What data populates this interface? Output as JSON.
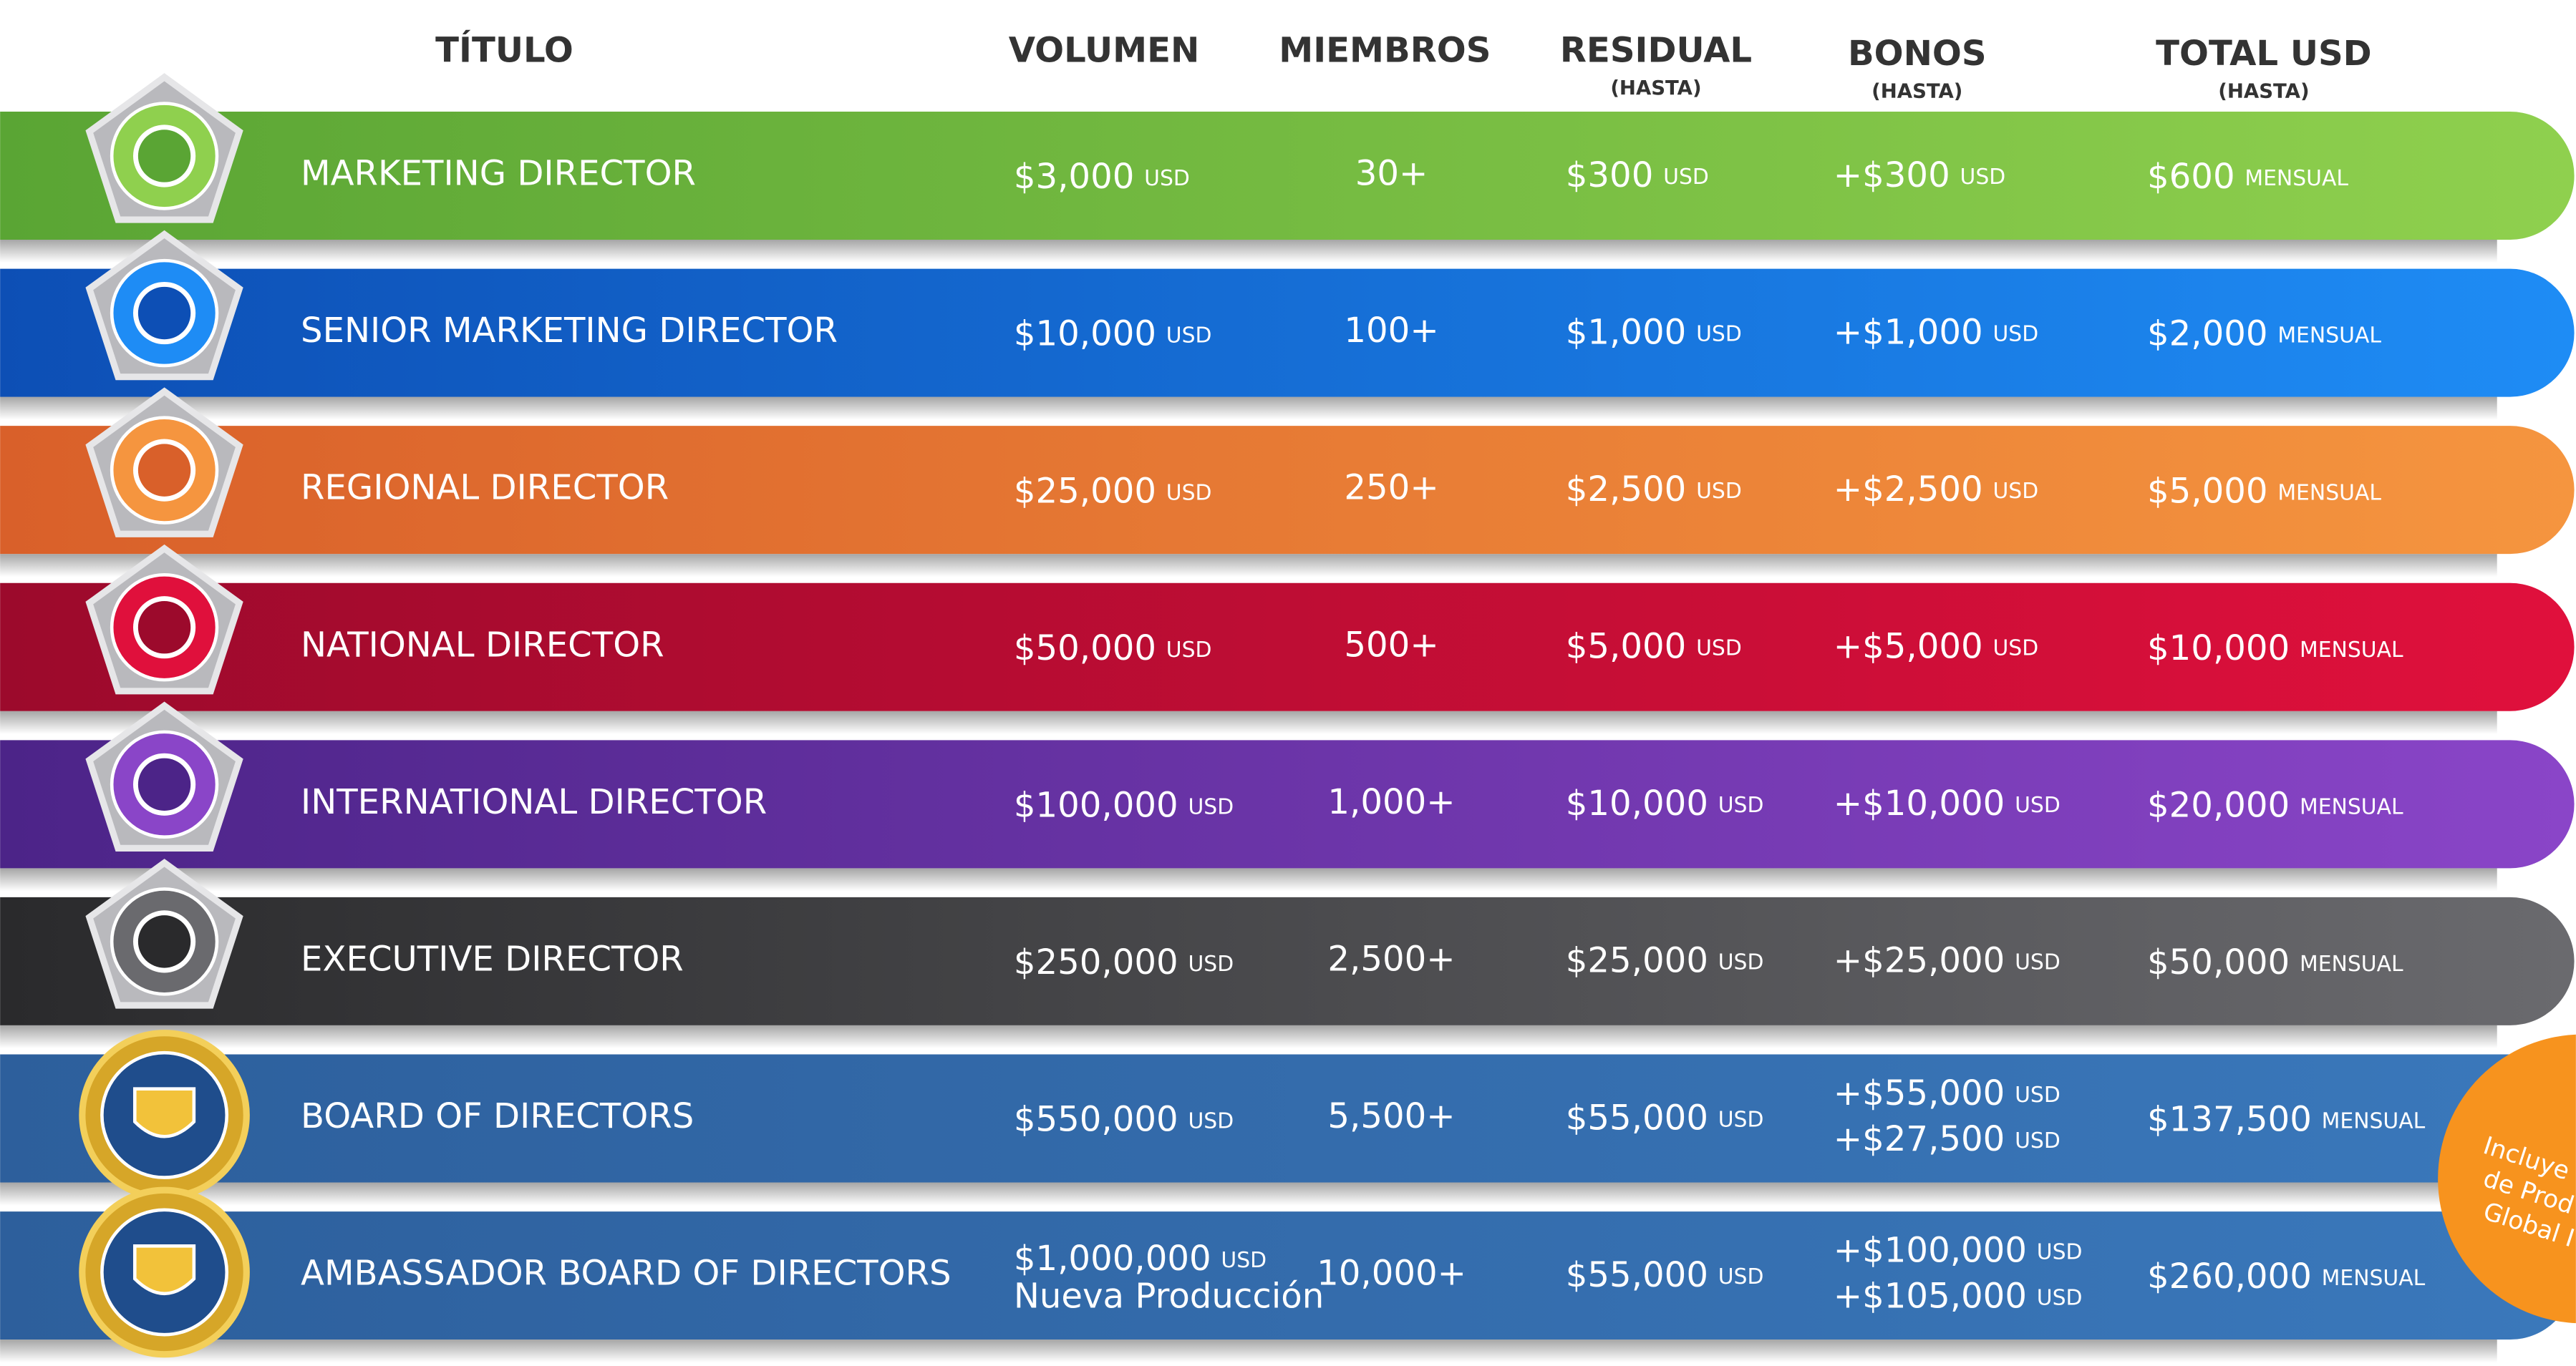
{
  "header": {
    "columns": [
      "TÍTULO",
      "VOLUMEN",
      "MIEMBROS",
      "RESIDUAL",
      "BONOS",
      "TOTAL USD"
    ],
    "sub": {
      "residual": "(HASTA)",
      "bonus": "(HASTA)",
      "total": "(HASTA)"
    }
  },
  "rows": [
    {
      "title": "MARKETING DIRECTOR",
      "volume": {
        "amount": "$3,000",
        "unit": "USD"
      },
      "members": "30+",
      "residual": {
        "amount": "$300",
        "unit": "USD"
      },
      "bonus": [
        {
          "amount": "+$300",
          "unit": "USD"
        }
      ],
      "total": {
        "amount": "$600",
        "unit": "MENSUAL"
      }
    },
    {
      "title": "SENIOR MARKETING DIRECTOR",
      "volume": {
        "amount": "$10,000",
        "unit": "USD"
      },
      "members": "100+",
      "residual": {
        "amount": "$1,000",
        "unit": "USD"
      },
      "bonus": [
        {
          "amount": "+$1,000",
          "unit": "USD"
        }
      ],
      "total": {
        "amount": "$2,000",
        "unit": "MENSUAL"
      }
    },
    {
      "title": "REGIONAL DIRECTOR",
      "volume": {
        "amount": "$25,000",
        "unit": "USD"
      },
      "members": "250+",
      "residual": {
        "amount": "$2,500",
        "unit": "USD"
      },
      "bonus": [
        {
          "amount": "+$2,500",
          "unit": "USD"
        }
      ],
      "total": {
        "amount": "$5,000",
        "unit": "MENSUAL"
      }
    },
    {
      "title": "NATIONAL DIRECTOR",
      "volume": {
        "amount": "$50,000",
        "unit": "USD"
      },
      "members": "500+",
      "residual": {
        "amount": "$5,000",
        "unit": "USD"
      },
      "bonus": [
        {
          "amount": "+$5,000",
          "unit": "USD"
        }
      ],
      "total": {
        "amount": "$10,000",
        "unit": "MENSUAL"
      }
    },
    {
      "title": "INTERNATIONAL DIRECTOR",
      "volume": {
        "amount": "$100,000",
        "unit": "USD"
      },
      "members": "1,000+",
      "residual": {
        "amount": "$10,000",
        "unit": "USD"
      },
      "bonus": [
        {
          "amount": "+$10,000",
          "unit": "USD"
        }
      ],
      "total": {
        "amount": "$20,000",
        "unit": "MENSUAL"
      }
    },
    {
      "title": "EXECUTIVE DIRECTOR",
      "volume": {
        "amount": "$250,000",
        "unit": "USD"
      },
      "members": "2,500+",
      "residual": {
        "amount": "$25,000",
        "unit": "USD"
      },
      "bonus": [
        {
          "amount": "+$25,000",
          "unit": "USD"
        }
      ],
      "total": {
        "amount": "$50,000",
        "unit": "MENSUAL"
      }
    },
    {
      "title": "BOARD OF DIRECTORS",
      "volume": {
        "amount": "$550,000",
        "unit": "USD"
      },
      "members": "5,500+",
      "residual": {
        "amount": "$55,000",
        "unit": "USD"
      },
      "bonus": [
        {
          "amount": "+$55,000",
          "unit": "USD"
        },
        {
          "amount": "+$27,500",
          "unit": "USD"
        }
      ],
      "total": {
        "amount": "$137,500",
        "unit": "MENSUAL"
      }
    },
    {
      "title": "AMBASSADOR BOARD OF DIRECTORS",
      "volume": {
        "amount": "$1,000,000",
        "unit": "USD",
        "note": "Nueva Producción"
      },
      "members": "10,000+",
      "residual": {
        "amount": "$55,000",
        "unit": "USD"
      },
      "bonus": [
        {
          "amount": "+$100,000",
          "unit": "USD"
        },
        {
          "amount": "+$105,000",
          "unit": "USD"
        }
      ],
      "total": {
        "amount": "$260,000",
        "unit": "MENSUAL"
      }
    }
  ],
  "badge_note": [
    "Incluye",
    "de Prod",
    "Global I"
  ]
}
